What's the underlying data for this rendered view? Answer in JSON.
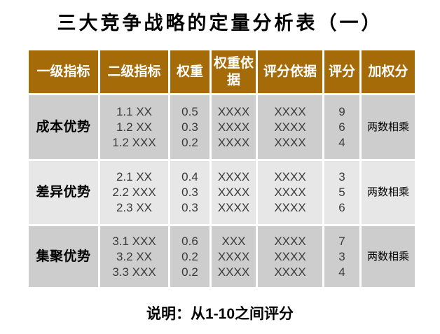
{
  "page": {
    "title": "三大竞争战略的定量分析表（一）",
    "note": "说明：从1-10之间评分"
  },
  "colors": {
    "header_bg": "#A56B08",
    "header_text": "#FFFFFF",
    "row_bg_odd": "#CDCDCD",
    "row_bg_even": "#E7E7E7",
    "cell_text": "#3B3B3B",
    "label_text": "#000000"
  },
  "table": {
    "columns": [
      "一级指标",
      "二级指标",
      "权重",
      "权重依据",
      "评分依据",
      "评分",
      "加权分"
    ],
    "rows": [
      {
        "level1": "成本优势",
        "level2": [
          "1.1 XX",
          "1.2 XX",
          "1.2 XXX"
        ],
        "weights": [
          "0.5",
          "0.3",
          "0.2"
        ],
        "weight_basis": [
          "XXXX",
          "XXXX",
          "XXXX"
        ],
        "score_basis": [
          "XXXX",
          "XXXX",
          "XXXX"
        ],
        "scores": [
          "9",
          "6",
          "4"
        ],
        "weighted": "两数相乘"
      },
      {
        "level1": "差异优势",
        "level2": [
          "2.1 XX",
          "2.2 XXX",
          "2.3 XX"
        ],
        "weights": [
          "0.4",
          "0.3",
          "0.3"
        ],
        "weight_basis": [
          "XXXX",
          "XXXX",
          "XXXX"
        ],
        "score_basis": [
          "XXXX",
          "XXXX",
          "XXXX"
        ],
        "scores": [
          "3",
          "5",
          "6"
        ],
        "weighted": "两数相乘"
      },
      {
        "level1": "集聚优势",
        "level2": [
          "3.1 XXX",
          "3.2 XX",
          "3.3 XXX"
        ],
        "weights": [
          "0.6",
          "0.2",
          "0.2"
        ],
        "weight_basis": [
          "XXX",
          "XXXX",
          "XXXX"
        ],
        "score_basis": [
          "XXXX",
          "XXXX",
          "XXXX"
        ],
        "scores": [
          "7",
          "3",
          "4"
        ],
        "weighted": "两数相乘"
      }
    ]
  }
}
